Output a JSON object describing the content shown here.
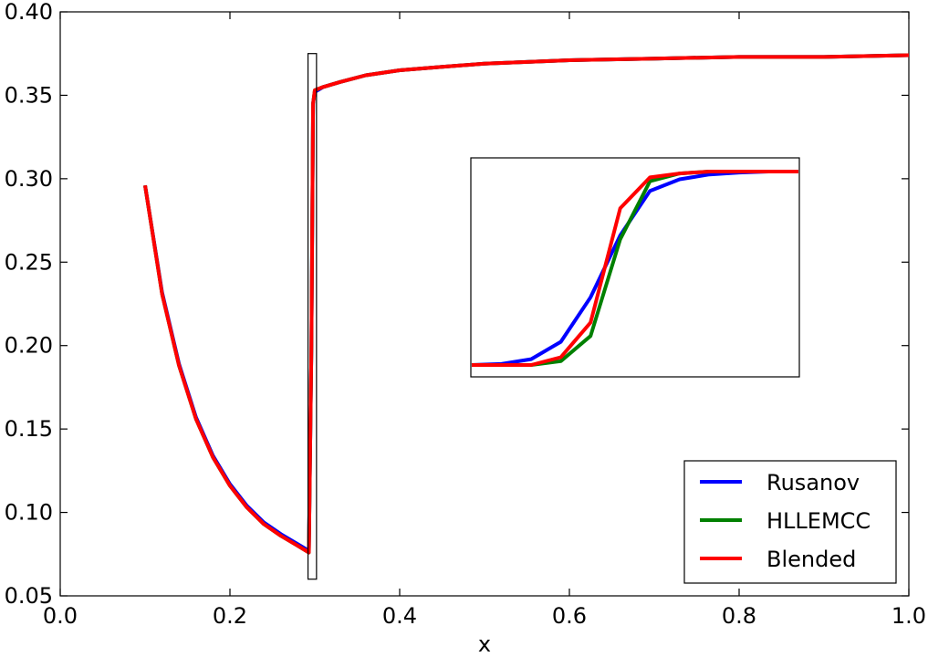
{
  "chart_data": {
    "type": "line",
    "xlabel": "x",
    "ylabel": "",
    "xlim": [
      0.0,
      1.0
    ],
    "ylim": [
      0.05,
      0.4
    ],
    "x_ticks": [
      "0.0",
      "0.2",
      "0.4",
      "0.6",
      "0.8",
      "1.0"
    ],
    "y_ticks": [
      "0.05",
      "0.10",
      "0.15",
      "0.20",
      "0.25",
      "0.30",
      "0.35",
      "0.40"
    ],
    "grid": false,
    "legend_position": "lower-right",
    "series": [
      {
        "name": "Rusanov",
        "color": "#0000ff",
        "x": [
          0.1,
          0.12,
          0.14,
          0.16,
          0.18,
          0.2,
          0.22,
          0.24,
          0.26,
          0.28,
          0.293,
          0.296,
          0.298,
          0.3,
          0.31,
          0.33,
          0.36,
          0.4,
          0.45,
          0.5,
          0.55,
          0.6,
          0.7,
          0.8,
          0.9,
          1.0
        ],
        "y": [
          0.296,
          0.232,
          0.189,
          0.157,
          0.134,
          0.117,
          0.104,
          0.094,
          0.087,
          0.081,
          0.077,
          0.2,
          0.345,
          0.352,
          0.355,
          0.358,
          0.362,
          0.365,
          0.367,
          0.369,
          0.37,
          0.371,
          0.372,
          0.373,
          0.373,
          0.374
        ]
      },
      {
        "name": "HLLEMCC",
        "color": "#008000",
        "x": [
          0.1,
          0.12,
          0.14,
          0.16,
          0.18,
          0.2,
          0.22,
          0.24,
          0.26,
          0.28,
          0.293,
          0.296,
          0.298,
          0.3,
          0.31,
          0.33,
          0.36,
          0.4,
          0.45,
          0.5,
          0.55,
          0.6,
          0.7,
          0.8,
          0.9,
          1.0
        ],
        "y": [
          0.296,
          0.231,
          0.188,
          0.156,
          0.133,
          0.116,
          0.103,
          0.093,
          0.086,
          0.08,
          0.076,
          0.2,
          0.345,
          0.353,
          0.355,
          0.358,
          0.362,
          0.365,
          0.367,
          0.369,
          0.37,
          0.371,
          0.372,
          0.373,
          0.373,
          0.374
        ]
      },
      {
        "name": "Blended",
        "color": "#ff0000",
        "x": [
          0.1,
          0.12,
          0.14,
          0.16,
          0.18,
          0.2,
          0.22,
          0.24,
          0.26,
          0.28,
          0.293,
          0.296,
          0.298,
          0.3,
          0.31,
          0.33,
          0.36,
          0.4,
          0.45,
          0.5,
          0.55,
          0.6,
          0.7,
          0.8,
          0.9,
          1.0
        ],
        "y": [
          0.296,
          0.231,
          0.188,
          0.156,
          0.133,
          0.116,
          0.103,
          0.093,
          0.086,
          0.08,
          0.076,
          0.2,
          0.345,
          0.353,
          0.355,
          0.358,
          0.362,
          0.365,
          0.367,
          0.369,
          0.37,
          0.371,
          0.372,
          0.373,
          0.373,
          0.374
        ]
      }
    ],
    "zoom_box": {
      "x": [
        0.292,
        0.302
      ],
      "y": [
        0.06,
        0.375
      ]
    },
    "inset": {
      "series": [
        {
          "name": "Rusanov",
          "color": "#0000ff",
          "y": [
            0.0,
            0.005,
            0.03,
            0.12,
            0.35,
            0.67,
            0.9,
            0.96,
            0.985,
            0.995,
            1.0,
            1.0
          ]
        },
        {
          "name": "HLLEMCC",
          "color": "#008000",
          "y": [
            0.0,
            0.0,
            0.0,
            0.02,
            0.15,
            0.65,
            0.95,
            0.99,
            1.0,
            1.0,
            1.0,
            1.0
          ]
        },
        {
          "name": "Blended",
          "color": "#ff0000",
          "y": [
            0.0,
            0.0,
            0.0,
            0.04,
            0.22,
            0.81,
            0.97,
            0.99,
            1.0,
            1.0,
            1.0,
            1.0
          ]
        }
      ]
    }
  }
}
